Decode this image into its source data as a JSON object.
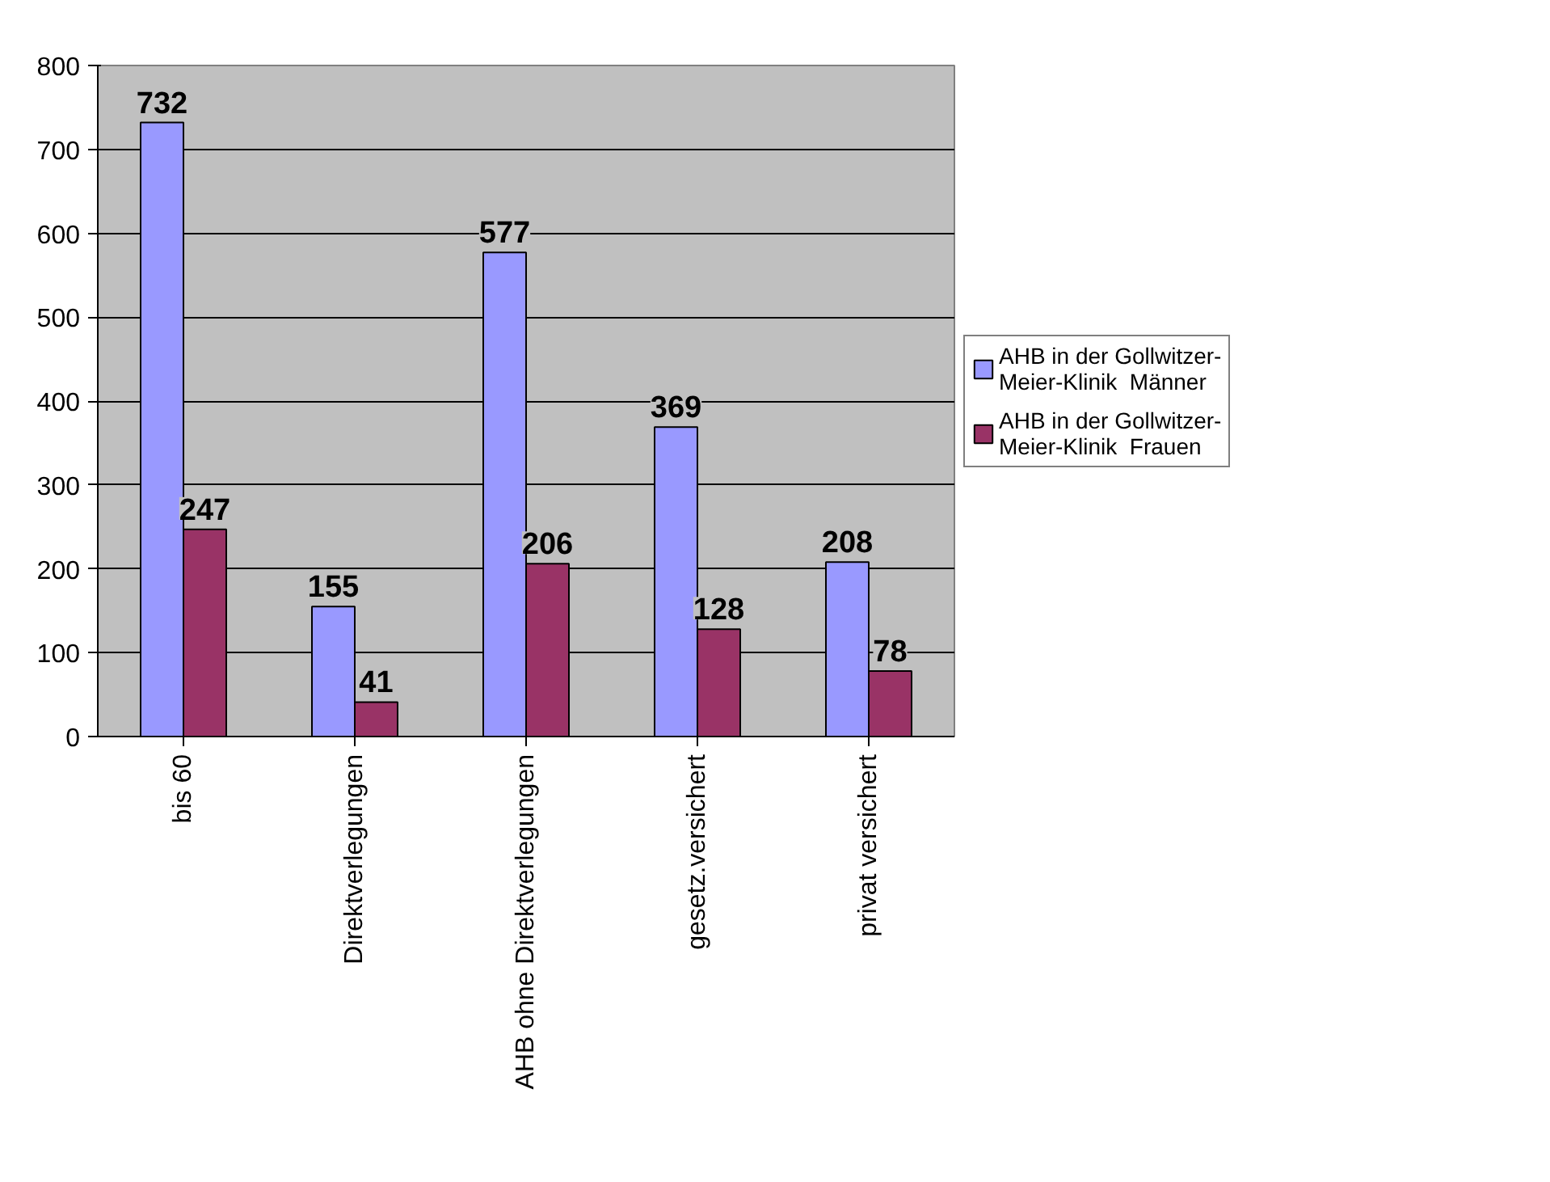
{
  "chart_data": {
    "type": "bar",
    "categories": [
      "bis 60",
      "Direktverlegungen",
      "AHB ohne Direktverlegungen",
      "gesetz.versichert",
      "privat versichert"
    ],
    "series": [
      {
        "name": "AHB in der Gollwitzer-Meier-Klinik  Männer",
        "color": "#9999ff",
        "values": [
          732,
          155,
          577,
          369,
          208
        ]
      },
      {
        "name": "AHB in der Gollwitzer-Meier-Klinik  Frauen",
        "color": "#993366",
        "values": [
          247,
          41,
          206,
          128,
          78
        ]
      }
    ],
    "ylim": [
      0,
      800
    ],
    "yticks": [
      0,
      100,
      200,
      300,
      400,
      500,
      600,
      700,
      800
    ],
    "grid": "y",
    "legend": "right",
    "data_labels": true
  }
}
